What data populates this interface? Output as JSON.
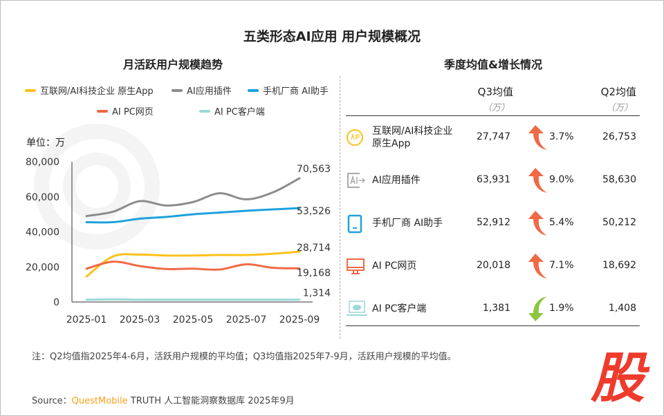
{
  "title": "五类形态AI应用 用户规模概况",
  "left_title": "月活跃用户规模趋势",
  "right_title": "季度均值&增长情况",
  "unit_label": "单位：万",
  "watermark": "QUEST MOBILE",
  "colors": {
    "internet_app": "#fcc11a",
    "plugin": "#8c8c8c",
    "phone": "#1da1dc",
    "pc_web": "#ef6a45",
    "pc_client": "#9ad9d6",
    "up": "#ef6a45",
    "down": "#8cc63f"
  },
  "chart_data": {
    "type": "line",
    "x": [
      "2025-01",
      "2025-02",
      "2025-03",
      "2025-04",
      "2025-05",
      "2025-06",
      "2025-07",
      "2025-08",
      "2025-09"
    ],
    "xticks": [
      "2025-01",
      "2025-03",
      "2025-05",
      "2025-07",
      "2025-09"
    ],
    "yticks": [
      "0",
      "20,000",
      "40,000",
      "60,000",
      "80,000"
    ],
    "ylim": [
      0,
      80000
    ],
    "grid": false,
    "legend_position": "top",
    "series": [
      {
        "name": "互联网/AI科技企业 原生App",
        "color": "#fcc11a",
        "values": [
          14500,
          26000,
          27000,
          26500,
          26500,
          26800,
          26800,
          27500,
          28714
        ],
        "end_label": "28,714"
      },
      {
        "name": "AI应用插件",
        "color": "#8c8c8c",
        "values": [
          49000,
          51500,
          57500,
          55000,
          57000,
          62000,
          58500,
          62500,
          70563
        ],
        "end_label": "70,563"
      },
      {
        "name": "手机厂商 AI助手",
        "color": "#1da1dc",
        "values": [
          45500,
          45500,
          47500,
          48500,
          50000,
          51000,
          52000,
          52800,
          53526
        ],
        "end_label": "53,526"
      },
      {
        "name": "AI PC网页",
        "color": "#ef6a45",
        "values": [
          19000,
          23000,
          20500,
          18800,
          19000,
          18500,
          21500,
          19500,
          19168
        ],
        "end_label": "19,168"
      },
      {
        "name": "AI PC客户端",
        "color": "#9ad9d6",
        "values": [
          1300,
          1500,
          1300,
          1300,
          1300,
          1300,
          1300,
          1300,
          1314
        ],
        "end_label": "1,314"
      }
    ]
  },
  "table": {
    "q3_header": "Q3均值",
    "q2_header": "Q2均值",
    "unit": "（万）",
    "rows": [
      {
        "icon": "app-icon",
        "name": "互联网/AI科技企业\n原生App",
        "q3": "27,747",
        "growth": "3.7%",
        "dir": "up",
        "q2": "26,753"
      },
      {
        "icon": "ai-plugin-icon",
        "name": "AI应用插件",
        "q3": "63,931",
        "growth": "9.0%",
        "dir": "up",
        "q2": "58,630"
      },
      {
        "icon": "phone-icon",
        "name": "手机厂商 AI助手",
        "q3": "52,912",
        "growth": "5.4%",
        "dir": "up",
        "q2": "50,212"
      },
      {
        "icon": "monitor-icon",
        "name": "AI PC网页",
        "q3": "20,018",
        "growth": "7.1%",
        "dir": "up",
        "q2": "18,692"
      },
      {
        "icon": "laptop-cloud-icon",
        "name": "AI PC客户端",
        "q3": "1,381",
        "growth": "1.9%",
        "dir": "down",
        "q2": "1,408"
      }
    ]
  },
  "note": "注：Q2均值指2025年4-6月，活跃用户规模的平均值；Q3均值指2025年7-9月，活跃用户规模的平均值。",
  "source": {
    "prefix": "Source：",
    "brand": "QuestMobile",
    "rest": " TRUTH 人工智能洞察数据库 2025年9月"
  },
  "logo": "股"
}
